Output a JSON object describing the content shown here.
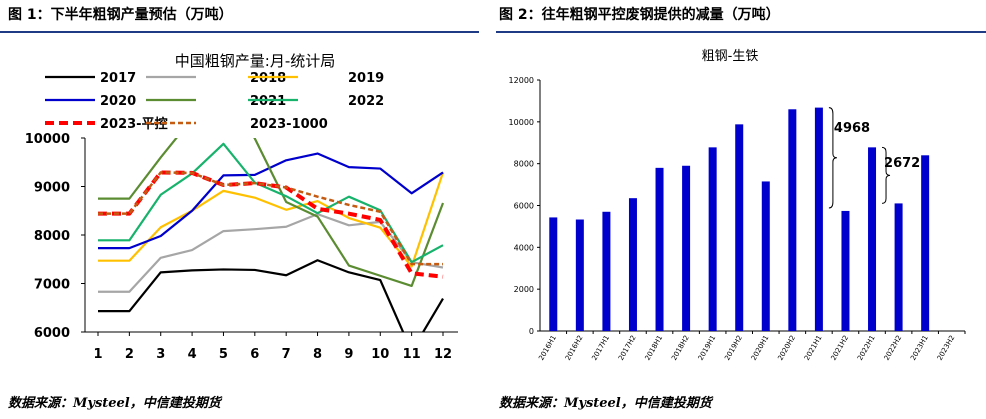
{
  "left": {
    "figure_title": "图 1：下半年粗钢产量预估（万吨）",
    "source": "数据来源：Mysteel，中信建投期货"
  },
  "right": {
    "figure_title": "图 2：往年粗钢平控废钢提供的减量（万吨）",
    "source": "数据来源：Mysteel，中信建投期货"
  },
  "colors": {
    "rule": "#1f3b86",
    "bar": "#0000cc"
  },
  "chart_data": [
    {
      "type": "line",
      "title": "中国粗钢产量:月-统计局",
      "x": [
        1,
        2,
        3,
        4,
        5,
        6,
        7,
        8,
        9,
        10,
        11,
        12
      ],
      "ylim": [
        6000,
        10000
      ],
      "yticks": [
        6000,
        7000,
        8000,
        9000,
        10000
      ],
      "grid": false,
      "legend_position": "top",
      "series": [
        {
          "name": "2017",
          "color": "#000000",
          "style": "solid",
          "values": [
            6430,
            6430,
            7230,
            7270,
            7290,
            7280,
            7170,
            7480,
            7230,
            7070,
            5600,
            6690
          ]
        },
        {
          "name": "2018",
          "color": "#a6a6a6",
          "style": "solid",
          "values": [
            6830,
            6830,
            7530,
            7690,
            8080,
            8120,
            8170,
            8430,
            8200,
            8270,
            7440,
            7330
          ]
        },
        {
          "name": "2019",
          "color": "#ffc000",
          "style": "solid",
          "values": [
            7470,
            7470,
            8160,
            8500,
            8910,
            8770,
            8520,
            8700,
            8350,
            8150,
            7350,
            9290
          ]
        },
        {
          "name": "2020",
          "color": "#0000cc",
          "style": "solid",
          "values": [
            7730,
            7730,
            7980,
            8500,
            9230,
            9240,
            9540,
            9680,
            9400,
            9370,
            8860,
            9290
          ]
        },
        {
          "name": "2021",
          "color": "#5b8c32",
          "style": "solid",
          "values": [
            8750,
            8750,
            9600,
            10400,
            11000,
            9990,
            8680,
            8380,
            7370,
            7160,
            6950,
            8660
          ]
        },
        {
          "name": "2022",
          "color": "#17b26b",
          "style": "solid",
          "values": [
            7890,
            7890,
            8830,
            9270,
            9880,
            9080,
            8800,
            8450,
            8790,
            8510,
            7440,
            7790
          ]
        },
        {
          "name": "2023-平控",
          "color": "#ff0000",
          "style": "dash",
          "values": [
            8440,
            8440,
            9290,
            9280,
            9030,
            9070,
            8980,
            8540,
            8440,
            8310,
            7210,
            7140
          ]
        },
        {
          "name": "2023-1000",
          "color": "#c55a11",
          "style": "dash",
          "values": [
            8440,
            8440,
            9290,
            9280,
            9030,
            9070,
            8980,
            8790,
            8620,
            8480,
            7400,
            7400
          ]
        }
      ]
    },
    {
      "type": "bar",
      "title": "粗钢-生铁",
      "categories": [
        "2016H1",
        "2016H2",
        "2017H1",
        "2017H2",
        "2018H1",
        "2018H2",
        "2019H1",
        "2019H2",
        "2020H1",
        "2020H2",
        "2021H1",
        "2021H2",
        "2022H1",
        "2022H2",
        "2023H1",
        "2023H2"
      ],
      "values": [
        5430,
        5330,
        5700,
        6350,
        7800,
        7900,
        8780,
        9880,
        7150,
        10600,
        10680,
        5740,
        8780,
        6100,
        8400,
        null
      ],
      "ylim": [
        0,
        12000
      ],
      "yticks": [
        0,
        2000,
        4000,
        6000,
        8000,
        10000,
        12000
      ],
      "grid": false,
      "annotations": [
        "4968",
        "2672"
      ]
    }
  ]
}
